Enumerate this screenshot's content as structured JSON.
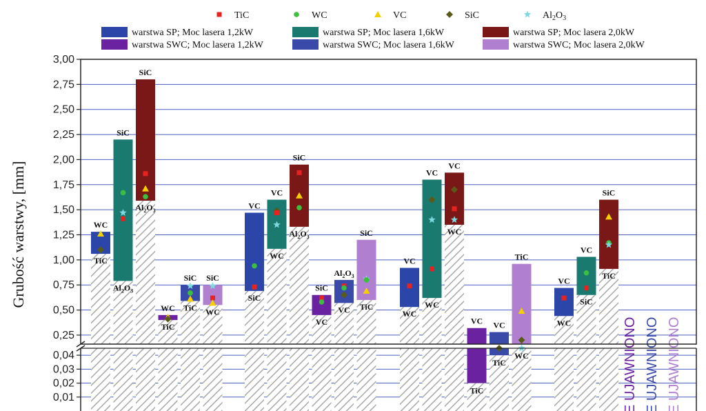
{
  "chart_data": {
    "type": "bar",
    "ylabel": "Grubość warstwy, [mm]",
    "y_ticks_upper": [
      "3,00",
      "2,75",
      "2,50",
      "2,25",
      "2,00",
      "1,75",
      "1,50",
      "1,25",
      "1,00",
      "0,75",
      "0,50",
      "0,25"
    ],
    "y_ticks_lower": [
      "0,04",
      "0,03",
      "0,02",
      "0,01"
    ],
    "ylim_upper": [
      0.16,
      3.0
    ],
    "ylim_lower": [
      0.0,
      0.045
    ],
    "markers_legend": [
      {
        "name": "TiC",
        "shape": "square",
        "color": "#e8231f"
      },
      {
        "name": "WC",
        "shape": "circle",
        "color": "#3cbf3c"
      },
      {
        "name": "VC",
        "shape": "triangle",
        "color": "#f5d000"
      },
      {
        "name": "SiC",
        "shape": "diamond",
        "color": "#5a5a18"
      },
      {
        "name": "Al2O3",
        "shape": "star",
        "color": "#7fd8e0"
      }
    ],
    "series": [
      {
        "key": "SP12",
        "name": "warstwa SP; Moc lasera 1,2kW",
        "color": "#2c45a8"
      },
      {
        "key": "SP16",
        "name": "warstwa SP; Moc lasera 1,6kW",
        "color": "#1b7a70"
      },
      {
        "key": "SP20",
        "name": "warstwa SP; Moc lasera 2,0kW",
        "color": "#7a1818"
      },
      {
        "key": "SWC12",
        "name": "warstwa SWC; Moc lasera 1,2kW",
        "color": "#6a22a0"
      },
      {
        "key": "SWC16",
        "name": "warstwa SWC; Moc lasera 1,6kW",
        "color": "#3a4aa8"
      },
      {
        "key": "SWC20",
        "name": "warstwa SWC; Moc lasera 2,0kW",
        "color": "#b07fd0"
      }
    ],
    "bars": [
      {
        "group": 1,
        "series": "SP12",
        "min": 1.06,
        "max": 1.28,
        "top_label": "WC",
        "bottom_label": "TiC",
        "markers": [
          {
            "m": "VC",
            "v": 1.26
          },
          {
            "m": "SiC",
            "v": 1.1
          }
        ]
      },
      {
        "group": 1,
        "series": "SP16",
        "min": 0.79,
        "max": 2.2,
        "top_label": "SiC",
        "bottom_label": "Al2O3",
        "markers": [
          {
            "m": "WC",
            "v": 1.67
          },
          {
            "m": "Al2O3",
            "v": 1.47
          },
          {
            "m": "TiC",
            "v": 1.41
          }
        ]
      },
      {
        "group": 1,
        "series": "SP20",
        "min": 1.59,
        "max": 2.8,
        "top_label": "SiC",
        "bottom_label": "Al2O3",
        "markers": [
          {
            "m": "TiC",
            "v": 1.86
          },
          {
            "m": "VC",
            "v": 1.71
          },
          {
            "m": "WC",
            "v": 1.63
          }
        ]
      },
      {
        "group": 1,
        "series": "SWC12",
        "min": 0.4,
        "max": 0.45,
        "top_label": "WC",
        "bottom_label": "TiC",
        "markers": [
          {
            "m": "VC",
            "v": 0.43
          },
          {
            "m": "SiC",
            "v": 0.41
          }
        ]
      },
      {
        "group": 1,
        "series": "SWC16",
        "min": 0.59,
        "max": 0.75,
        "top_label": "SiC",
        "bottom_label": "TiC",
        "markers": [
          {
            "m": "Al2O3",
            "v": 0.74
          },
          {
            "m": "WC",
            "v": 0.67
          },
          {
            "m": "VC",
            "v": 0.61
          }
        ]
      },
      {
        "group": 1,
        "series": "SWC20",
        "min": 0.55,
        "max": 0.75,
        "top_label": "SiC",
        "bottom_label": "WC",
        "markers": [
          {
            "m": "Al2O3",
            "v": 0.74
          },
          {
            "m": "TiC",
            "v": 0.62
          },
          {
            "m": "VC",
            "v": 0.57
          }
        ]
      },
      {
        "group": 2,
        "series": "SP12",
        "min": 0.69,
        "max": 1.47,
        "top_label": "VC",
        "bottom_label": "SiC",
        "markers": [
          {
            "m": "WC",
            "v": 0.94
          },
          {
            "m": "TiC",
            "v": 0.73
          }
        ]
      },
      {
        "group": 2,
        "series": "SP16",
        "min": 1.11,
        "max": 1.6,
        "top_label": "VC",
        "bottom_label": "WC",
        "markers": [
          {
            "m": "SiC",
            "v": 1.49
          },
          {
            "m": "TiC",
            "v": 1.47
          },
          {
            "m": "Al2O3",
            "v": 1.35
          }
        ]
      },
      {
        "group": 2,
        "series": "SP20",
        "min": 1.33,
        "max": 1.95,
        "top_label": "SiC",
        "bottom_label": "Al2O3",
        "markers": [
          {
            "m": "TiC",
            "v": 1.87
          },
          {
            "m": "VC",
            "v": 1.64
          },
          {
            "m": "WC",
            "v": 1.52
          }
        ]
      },
      {
        "group": 2,
        "series": "SWC12",
        "min": 0.45,
        "max": 0.65,
        "top_label": "SiC",
        "bottom_label": "VC",
        "markers": [
          {
            "m": "TiC",
            "v": 0.62
          },
          {
            "m": "WC",
            "v": 0.58
          }
        ]
      },
      {
        "group": 2,
        "series": "SWC16",
        "min": 0.57,
        "max": 0.8,
        "top_label": "Al2O3",
        "bottom_label": "VC",
        "markers": [
          {
            "m": "TiC",
            "v": 0.74
          },
          {
            "m": "WC",
            "v": 0.72
          },
          {
            "m": "SiC",
            "v": 0.65
          }
        ]
      },
      {
        "group": 2,
        "series": "SWC20",
        "min": 0.6,
        "max": 1.2,
        "top_label": "SiC",
        "bottom_label": "TiC",
        "markers": [
          {
            "m": "Al2O3",
            "v": 0.81
          },
          {
            "m": "WC",
            "v": 0.8
          },
          {
            "m": "VC",
            "v": 0.69
          }
        ]
      },
      {
        "group": 3,
        "series": "SP12",
        "min": 0.53,
        "max": 0.92,
        "top_label": "VC",
        "bottom_label": "WC",
        "markers": [
          {
            "m": "TiC",
            "v": 0.74
          }
        ]
      },
      {
        "group": 3,
        "series": "SP16",
        "min": 0.62,
        "max": 1.8,
        "top_label": "VC",
        "bottom_label": "WC",
        "markers": [
          {
            "m": "SiC",
            "v": 1.6
          },
          {
            "m": "Al2O3",
            "v": 1.4
          },
          {
            "m": "TiC",
            "v": 0.91
          }
        ]
      },
      {
        "group": 3,
        "series": "SP20",
        "min": 1.35,
        "max": 1.87,
        "top_label": "VC",
        "bottom_label": "WC",
        "markers": [
          {
            "m": "SiC",
            "v": 1.7
          },
          {
            "m": "TiC",
            "v": 1.51
          },
          {
            "m": "Al2O3",
            "v": 1.4
          }
        ]
      },
      {
        "group": 3,
        "series": "SWC12",
        "min": 0.02,
        "max": 0.32,
        "top_label": "VC",
        "bottom_label": "TiC",
        "markers": []
      },
      {
        "group": 3,
        "series": "SWC16",
        "min": 0.04,
        "max": 0.28,
        "top_label": "VC",
        "bottom_label": "TiC",
        "markers": [
          {
            "m": "SiC",
            "v": 0.11
          }
        ]
      },
      {
        "group": 3,
        "series": "SWC20",
        "min": 0.12,
        "max": 0.96,
        "top_label": "TiC",
        "bottom_label": "WC",
        "markers": [
          {
            "m": "VC",
            "v": 0.49
          },
          {
            "m": "SiC",
            "v": 0.2
          },
          {
            "m": "Al2O3",
            "v": 0.15
          }
        ]
      },
      {
        "group": 4,
        "series": "SP12",
        "min": 0.44,
        "max": 0.72,
        "top_label": "VC",
        "bottom_label": "WC",
        "markers": [
          {
            "m": "TiC",
            "v": 0.62
          }
        ]
      },
      {
        "group": 4,
        "series": "SP16",
        "min": 0.65,
        "max": 1.03,
        "top_label": "VC",
        "bottom_label": "SiC",
        "markers": [
          {
            "m": "WC",
            "v": 0.87
          },
          {
            "m": "TiC",
            "v": 0.72
          }
        ]
      },
      {
        "group": 4,
        "series": "SP20",
        "min": 0.91,
        "max": 1.6,
        "top_label": "SiC",
        "bottom_label": "TiC",
        "markers": [
          {
            "m": "VC",
            "v": 1.43
          },
          {
            "m": "WC",
            "v": 1.17
          },
          {
            "m": "Al2O3",
            "v": 1.15
          }
        ]
      }
    ],
    "annotations": [
      {
        "text": "NIE UJAWNIONO",
        "series": "SWC12"
      },
      {
        "text": "NIE UJAWNIONO",
        "series": "SWC16"
      },
      {
        "text": "NIE UJAWNIONO",
        "series": "SWC20"
      }
    ]
  }
}
